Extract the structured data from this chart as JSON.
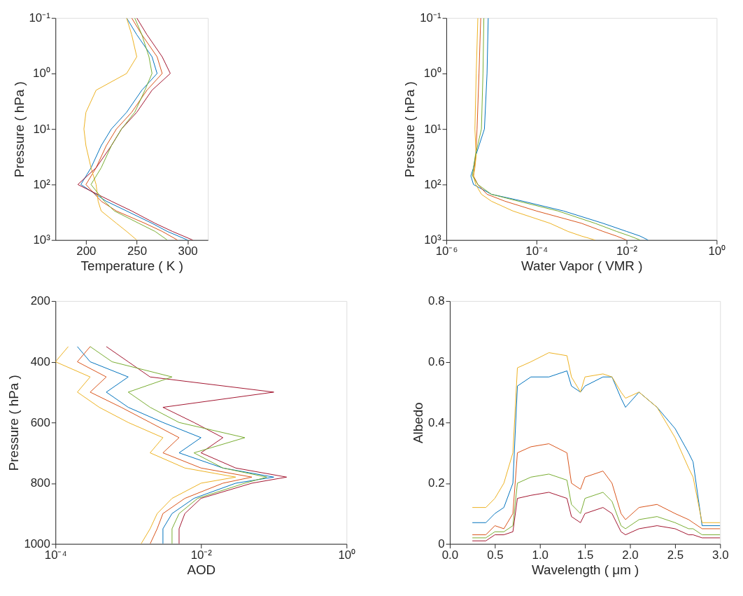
{
  "chart_data": [
    {
      "type": "line",
      "xlabel": "Temperature ( K )",
      "ylabel": "Pressure ( hPa )",
      "log": "y",
      "xlim": [
        170,
        320
      ],
      "xticks": [
        200,
        250,
        300
      ],
      "ylim": [
        1000,
        0.1
      ],
      "yticks": [
        {
          "value": 0.1,
          "label": "10⁻¹"
        },
        {
          "value": 1,
          "label": "10⁰"
        },
        {
          "value": 10,
          "label": "10¹"
        },
        {
          "value": 100,
          "label": "10²"
        },
        {
          "value": 1000,
          "label": "10³"
        }
      ],
      "series": [
        {
          "color": "#0072bd",
          "x": [
            300,
            280,
            265,
            240,
            220,
            195,
            205,
            215,
            225,
            240,
            255,
            270,
            265,
            250,
            240
          ],
          "values": [
            1000,
            700,
            500,
            300,
            200,
            100,
            50,
            20,
            10,
            5,
            2,
            1,
            0.5,
            0.2,
            0.1
          ]
        },
        {
          "color": "#d95319",
          "x": [
            290,
            275,
            258,
            230,
            215,
            200,
            210,
            220,
            230,
            245,
            260,
            275,
            270,
            255,
            245
          ],
          "values": [
            1000,
            700,
            500,
            300,
            200,
            100,
            50,
            20,
            10,
            5,
            2,
            1,
            0.5,
            0.2,
            0.1
          ]
        },
        {
          "color": "#edb120",
          "x": [
            250,
            240,
            230,
            215,
            212,
            210,
            205,
            200,
            198,
            200,
            210,
            240,
            250,
            245,
            240
          ],
          "values": [
            1000,
            700,
            500,
            300,
            200,
            100,
            50,
            20,
            10,
            5,
            2,
            1,
            0.5,
            0.2,
            0.1
          ]
        },
        {
          "color": "#a2142f",
          "x": [
            305,
            285,
            268,
            245,
            225,
            192,
            210,
            225,
            235,
            250,
            265,
            283,
            275,
            260,
            250
          ],
          "values": [
            1000,
            700,
            500,
            300,
            200,
            100,
            50,
            20,
            10,
            5,
            2,
            1,
            0.5,
            0.2,
            0.1
          ]
        },
        {
          "color": "#77ac30",
          "x": [
            280,
            268,
            252,
            228,
            218,
            205,
            215,
            225,
            235,
            248,
            258,
            265,
            262,
            255,
            248
          ],
          "values": [
            1000,
            700,
            500,
            300,
            200,
            100,
            50,
            20,
            10,
            5,
            2,
            1,
            0.5,
            0.2,
            0.1
          ]
        }
      ]
    },
    {
      "type": "line",
      "xlabel": "Water Vapor ( VMR )",
      "ylabel": "Pressure ( hPa )",
      "log": "xy",
      "xlim": [
        1e-06,
        1
      ],
      "xticks": [
        {
          "value": 1e-06,
          "label": "10⁻⁶"
        },
        {
          "value": 0.0001,
          "label": "10⁻⁴"
        },
        {
          "value": 0.01,
          "label": "10⁻²"
        },
        {
          "value": 1,
          "label": "10⁰"
        }
      ],
      "ylim": [
        1000,
        0.1
      ],
      "yticks": [
        {
          "value": 0.1,
          "label": "10⁻¹"
        },
        {
          "value": 1,
          "label": "10⁰"
        },
        {
          "value": 10,
          "label": "10¹"
        },
        {
          "value": 100,
          "label": "10²"
        },
        {
          "value": 1000,
          "label": "10³"
        }
      ],
      "series": [
        {
          "color": "#0072bd",
          "x": [
            0.03,
            0.02,
            0.01,
            0.003,
            0.0004,
            5e-05,
            1e-05,
            4e-06,
            3.5e-06,
            4e-06,
            4.5e-06,
            7e-06,
            8e-06,
            8.5e-06
          ],
          "values": [
            1000,
            850,
            700,
            500,
            300,
            200,
            150,
            100,
            70,
            50,
            30,
            10,
            1,
            0.1
          ]
        },
        {
          "color": "#d95319",
          "x": [
            0.01,
            0.006,
            0.003,
            0.001,
            0.0001,
            2e-05,
            8e-06,
            5e-06,
            4e-06,
            4.2e-06,
            4.5e-06,
            4.8e-06,
            5.3e-06,
            5.8e-06
          ],
          "values": [
            1000,
            850,
            700,
            500,
            300,
            200,
            150,
            100,
            70,
            50,
            30,
            10,
            1,
            0.1
          ]
        },
        {
          "color": "#edb120",
          "x": [
            0.002,
            0.001,
            0.0005,
            0.0002,
            3e-05,
            1e-05,
            6e-06,
            4.5e-06,
            4e-06,
            4.3e-06,
            4.6e-06,
            4.3e-06,
            4.6e-06,
            5e-06
          ],
          "values": [
            1000,
            850,
            700,
            500,
            300,
            200,
            150,
            100,
            70,
            50,
            30,
            10,
            1,
            0.1
          ]
        },
        {
          "color": "#77ac30",
          "x": [
            0.02,
            0.012,
            0.006,
            0.002,
            0.0003,
            4e-05,
            1e-05,
            5e-06,
            3.8e-06,
            4e-06,
            4.4e-06,
            6e-06,
            6.5e-06,
            6.8e-06
          ],
          "values": [
            1000,
            850,
            700,
            500,
            300,
            200,
            150,
            100,
            70,
            50,
            30,
            10,
            1,
            0.1
          ]
        }
      ]
    },
    {
      "type": "line",
      "xlabel": "AOD",
      "ylabel": "Pressure ( hPa )",
      "log": "x",
      "xlim": [
        0.0001,
        1
      ],
      "xticks": [
        {
          "value": 0.0001,
          "label": "10⁻⁴"
        },
        {
          "value": 0.01,
          "label": "10⁻²"
        },
        {
          "value": 1,
          "label": "10⁰"
        }
      ],
      "ylim": [
        1000,
        200
      ],
      "yticks": [
        200,
        400,
        600,
        800,
        {
          "value": 1000,
          "label": "1000"
        }
      ],
      "series": [
        {
          "color": "#0072bd",
          "x": [
            0.003,
            0.003,
            0.004,
            0.008,
            0.03,
            0.1,
            0.02,
            0.005,
            0.01,
            0.003,
            0.001,
            0.0005,
            0.001,
            0.0003,
            0.0002
          ],
          "values": [
            1000,
            950,
            900,
            850,
            800,
            780,
            750,
            700,
            650,
            600,
            550,
            500,
            450,
            400,
            350
          ]
        },
        {
          "color": "#d95319",
          "x": [
            0.002,
            0.0025,
            0.003,
            0.006,
            0.02,
            0.05,
            0.01,
            0.003,
            0.005,
            0.002,
            0.0008,
            0.0003,
            0.0005,
            0.0002,
            0.0003
          ],
          "values": [
            1000,
            950,
            900,
            850,
            800,
            780,
            750,
            700,
            650,
            600,
            550,
            500,
            450,
            400,
            350
          ]
        },
        {
          "color": "#a2142f",
          "x": [
            0.005,
            0.005,
            0.006,
            0.01,
            0.05,
            0.15,
            0.03,
            0.01,
            0.02,
            0.008,
            0.003,
            0.1,
            0.002,
            0.001,
            0.0005
          ],
          "values": [
            1000,
            950,
            900,
            850,
            800,
            780,
            750,
            700,
            650,
            600,
            550,
            500,
            450,
            400,
            350
          ]
        },
        {
          "color": "#edb120",
          "x": [
            0.0015,
            0.002,
            0.0025,
            0.004,
            0.01,
            0.03,
            0.006,
            0.002,
            0.003,
            0.001,
            0.0004,
            0.0002,
            0.0003,
            0.0001,
            0.00015
          ],
          "values": [
            1000,
            950,
            900,
            850,
            800,
            780,
            750,
            700,
            650,
            600,
            550,
            500,
            450,
            400,
            350
          ]
        },
        {
          "color": "#77ac30",
          "x": [
            0.004,
            0.004,
            0.005,
            0.009,
            0.04,
            0.08,
            0.02,
            0.008,
            0.04,
            0.005,
            0.002,
            0.001,
            0.004,
            0.0006,
            0.0003
          ],
          "values": [
            1000,
            950,
            900,
            850,
            800,
            780,
            750,
            700,
            650,
            600,
            550,
            500,
            450,
            400,
            350
          ]
        }
      ]
    },
    {
      "type": "line",
      "xlabel": "Wavelength ( μm )",
      "ylabel": "Albedo",
      "xlim": [
        0,
        3
      ],
      "xticks": [
        {
          "value": 0,
          "label": "0.0"
        },
        0.5,
        {
          "value": 1,
          "label": "1.0"
        },
        1.5,
        {
          "value": 2,
          "label": "2.0"
        },
        2.5,
        {
          "value": 3,
          "label": "3.0"
        }
      ],
      "ylim": [
        0,
        0.8
      ],
      "yticks": [
        {
          "value": 0,
          "label": "0"
        },
        0.2,
        0.4,
        0.6,
        0.8
      ],
      "series": [
        {
          "color": "#0072bd",
          "x": [
            0.25,
            0.4,
            0.5,
            0.6,
            0.7,
            0.75,
            0.9,
            1.1,
            1.3,
            1.35,
            1.45,
            1.5,
            1.7,
            1.8,
            1.9,
            1.95,
            2.1,
            2.3,
            2.5,
            2.65,
            2.7,
            2.8,
            3.0
          ],
          "values": [
            0.07,
            0.07,
            0.1,
            0.12,
            0.2,
            0.52,
            0.55,
            0.55,
            0.57,
            0.52,
            0.5,
            0.52,
            0.55,
            0.55,
            0.48,
            0.45,
            0.5,
            0.45,
            0.38,
            0.3,
            0.27,
            0.06,
            0.06
          ]
        },
        {
          "color": "#d95319",
          "x": [
            0.25,
            0.4,
            0.5,
            0.6,
            0.7,
            0.75,
            0.9,
            1.1,
            1.3,
            1.35,
            1.45,
            1.5,
            1.7,
            1.8,
            1.9,
            1.95,
            2.1,
            2.3,
            2.5,
            2.65,
            2.7,
            2.8,
            3.0
          ],
          "values": [
            0.03,
            0.03,
            0.06,
            0.05,
            0.1,
            0.3,
            0.32,
            0.33,
            0.3,
            0.2,
            0.18,
            0.22,
            0.24,
            0.2,
            0.1,
            0.08,
            0.12,
            0.13,
            0.1,
            0.08,
            0.07,
            0.05,
            0.05
          ]
        },
        {
          "color": "#77ac30",
          "x": [
            0.25,
            0.4,
            0.5,
            0.6,
            0.7,
            0.75,
            0.9,
            1.1,
            1.3,
            1.35,
            1.45,
            1.5,
            1.7,
            1.8,
            1.9,
            1.95,
            2.1,
            2.3,
            2.5,
            2.65,
            2.7,
            2.8,
            3.0
          ],
          "values": [
            0.02,
            0.02,
            0.04,
            0.04,
            0.06,
            0.2,
            0.22,
            0.23,
            0.21,
            0.13,
            0.1,
            0.15,
            0.17,
            0.14,
            0.06,
            0.05,
            0.08,
            0.09,
            0.07,
            0.05,
            0.05,
            0.03,
            0.03
          ]
        },
        {
          "color": "#edb120",
          "x": [
            0.25,
            0.4,
            0.5,
            0.6,
            0.7,
            0.75,
            0.9,
            1.1,
            1.3,
            1.35,
            1.45,
            1.5,
            1.7,
            1.8,
            1.9,
            1.95,
            2.1,
            2.3,
            2.5,
            2.65,
            2.7,
            2.8,
            3.0
          ],
          "values": [
            0.12,
            0.12,
            0.15,
            0.2,
            0.3,
            0.58,
            0.6,
            0.63,
            0.62,
            0.55,
            0.5,
            0.55,
            0.56,
            0.55,
            0.5,
            0.48,
            0.5,
            0.45,
            0.35,
            0.25,
            0.22,
            0.07,
            0.07
          ]
        },
        {
          "color": "#a2142f",
          "x": [
            0.25,
            0.4,
            0.5,
            0.6,
            0.7,
            0.75,
            0.9,
            1.1,
            1.3,
            1.35,
            1.45,
            1.5,
            1.7,
            1.8,
            1.9,
            1.95,
            2.1,
            2.3,
            2.5,
            2.65,
            2.7,
            2.8,
            3.0
          ],
          "values": [
            0.01,
            0.01,
            0.03,
            0.03,
            0.04,
            0.15,
            0.16,
            0.17,
            0.15,
            0.09,
            0.07,
            0.1,
            0.12,
            0.1,
            0.04,
            0.03,
            0.05,
            0.06,
            0.05,
            0.03,
            0.03,
            0.02,
            0.02
          ]
        }
      ]
    }
  ]
}
